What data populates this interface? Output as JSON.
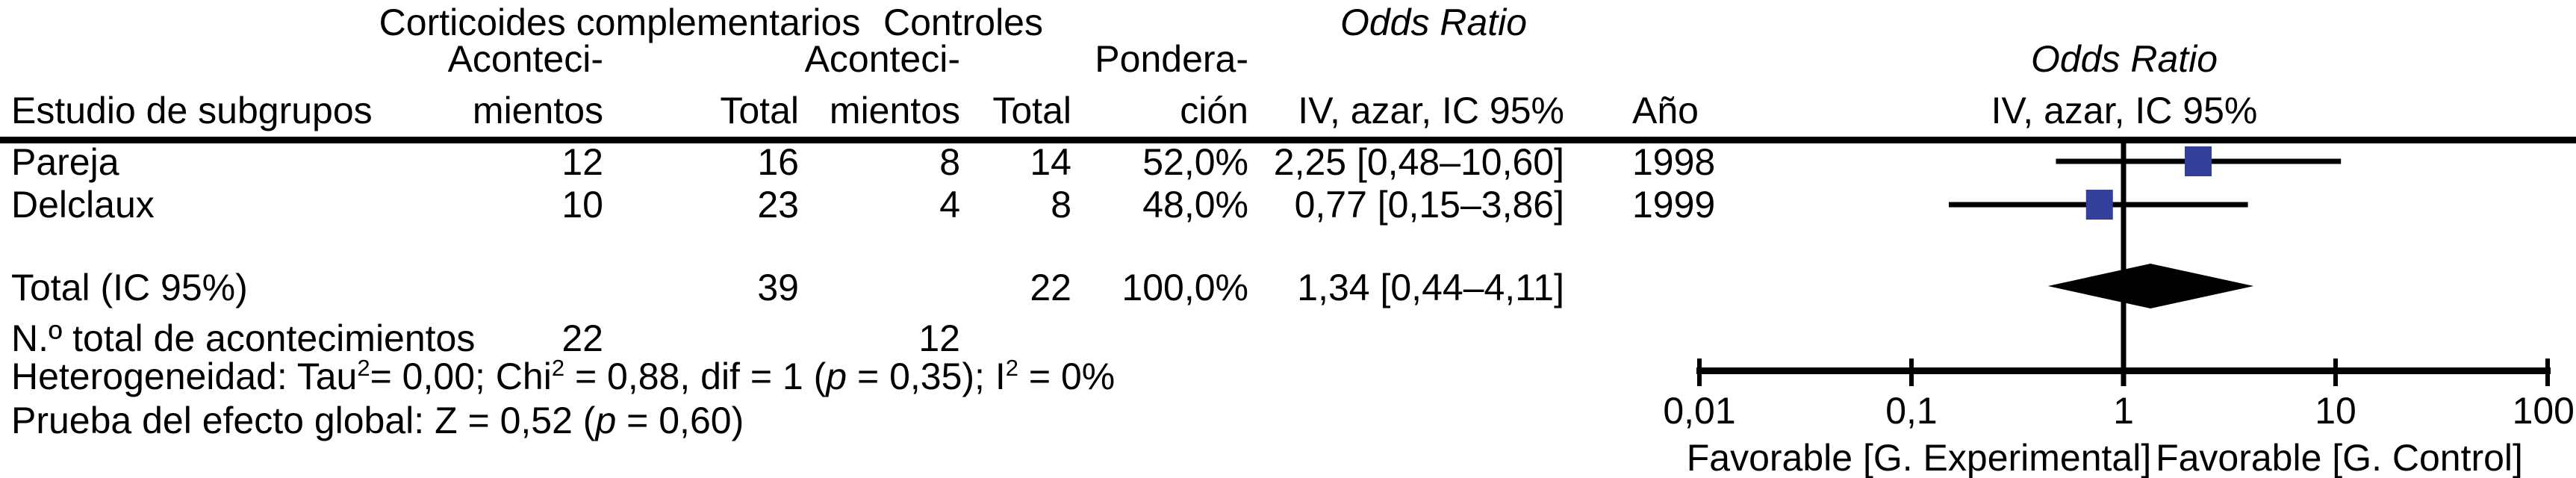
{
  "colors": {
    "marker_blue": "#333f9b",
    "line_black": "#000000"
  },
  "header": {
    "group1": "Corticoides complementarios",
    "group2": "Controles",
    "or_col_title": "Odds Ratio",
    "plot_title": "Odds Ratio",
    "study_col": "Estudio de subgrupos",
    "events_line1": "Aconteci-",
    "events_line2": "mientos",
    "total_col": "Total",
    "weight_line1": "Pondera-",
    "weight_line2": "ción",
    "or_method_col": "IV, azar, IC 95%",
    "year_col": "Año",
    "plot_method": "IV, azar, IC 95%"
  },
  "table": {
    "rows": [
      {
        "study": "Pareja",
        "events1": "12",
        "total1": "16",
        "events2": "8",
        "total2": "14",
        "weight": "52,0%",
        "or_ci": "2,25 [0,48–10,60]",
        "year": "1998"
      },
      {
        "study": "Delclaux",
        "events1": "10",
        "total1": "23",
        "events2": "4",
        "total2": "8",
        "weight": "48,0%",
        "or_ci": "0,77 [0,15–3,86]",
        "year": "1999"
      }
    ],
    "total_row": {
      "label": "Total (IC 95%)",
      "total1": "39",
      "total2": "22",
      "weight": "100,0%",
      "or_ci": "1,34 [0,44–4,11]"
    },
    "events_total_row": {
      "label": "N.º total de acontecimientos",
      "events1": "22",
      "events2": "12"
    },
    "heterogeneity": {
      "p1": "Heterogeneidad: Tau",
      "s1": "2",
      "p2": "= 0,00; Chi",
      "s2": "2",
      "p3": " = 0,88, dif = 1 (",
      "i1": "p",
      "p4": " = 0,35); I",
      "s3": "2",
      "p5": " = 0%"
    },
    "overall_test": {
      "p1": "Prueba del efecto global: Z = 0,52 (",
      "i1": "p",
      "p2": " = 0,60)"
    }
  },
  "chart_data": {
    "type": "forest",
    "x_scale": "log10",
    "x_axis_range": [
      0.01,
      100
    ],
    "null_line": 1,
    "axis_ticks": [
      0.01,
      0.1,
      1,
      10,
      100
    ],
    "tick_labels": [
      "0,01",
      "0,1",
      "1",
      "10",
      "100"
    ],
    "studies": [
      {
        "name": "Pareja",
        "year": "1998",
        "or": 2.25,
        "ci_low": 0.48,
        "ci_high": 10.6,
        "weight_pct": 52.0
      },
      {
        "name": "Delclaux",
        "year": "1999",
        "or": 0.77,
        "ci_low": 0.15,
        "ci_high": 3.86,
        "weight_pct": 48.0
      }
    ],
    "total": {
      "or": 1.34,
      "ci_low": 0.44,
      "ci_high": 4.11
    },
    "footer_left_label": "Favorable [G. Experimental]",
    "footer_right_label": "Favorable [G. Control]"
  }
}
